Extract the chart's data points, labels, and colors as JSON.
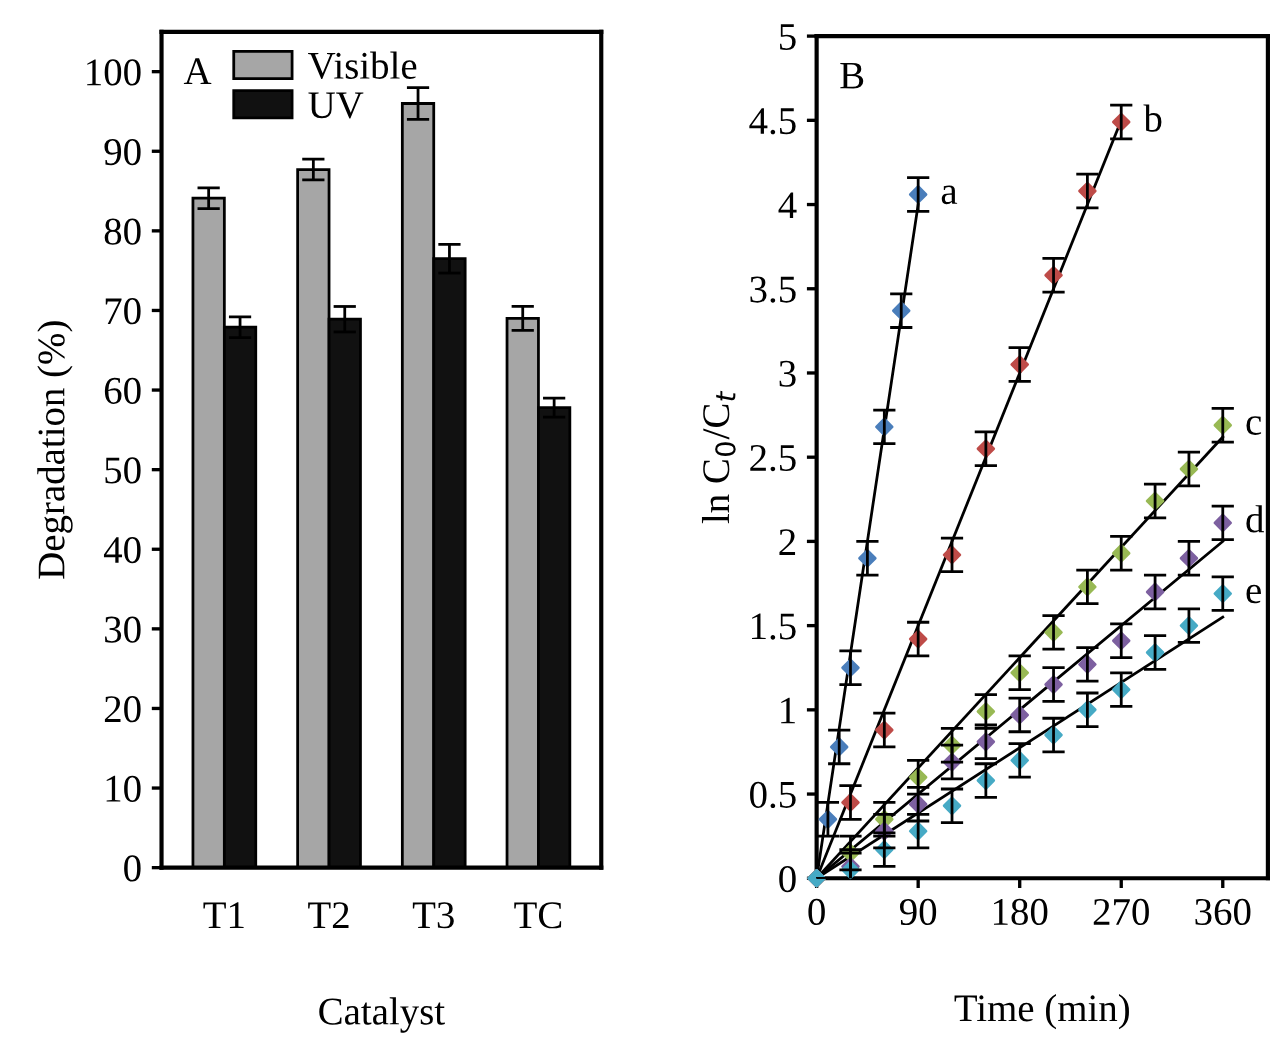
{
  "chart_data": [
    {
      "type": "bar",
      "xlabel": "Catalyst",
      "ylabel": "Degradation (%)",
      "categories": [
        "T1",
        "T2",
        "T3",
        "TC"
      ],
      "ylim": [
        0,
        105
      ],
      "yticks": [
        0,
        10,
        20,
        30,
        40,
        50,
        60,
        70,
        80,
        90,
        100
      ],
      "legend": "top left",
      "grid": false,
      "annotations": [
        "A"
      ],
      "series": [
        {
          "name": "Visible",
          "color": "#a6a6a6",
          "values": [
            84.1,
            87.7,
            96.0,
            69.0
          ],
          "errors": [
            1.3,
            1.3,
            2.0,
            1.5
          ]
        },
        {
          "name": "UV",
          "color": "#111111",
          "values": [
            67.9,
            68.9,
            76.5,
            57.8
          ],
          "errors": [
            1.3,
            1.6,
            1.8,
            1.2
          ]
        }
      ]
    },
    {
      "type": "scatter",
      "xlabel": "Time (min)",
      "ylabel": "ln C$_{0}$/C$_{t}$",
      "xlim": [
        0,
        400
      ],
      "xticks": [
        0,
        90,
        180,
        270,
        360
      ],
      "ylim": [
        0,
        5
      ],
      "yticks": [
        0,
        0.5,
        1,
        1.5,
        2,
        2.5,
        3,
        3.5,
        4,
        4.5,
        5
      ],
      "grid": false,
      "annotations": [
        "B"
      ],
      "series": [
        {
          "name": "a",
          "marker": "diamond",
          "color": "#4a7ebb",
          "x": [
            0,
            10,
            20,
            30,
            45,
            60,
            75,
            90
          ],
          "values": [
            0,
            0.35,
            0.78,
            1.25,
            1.9,
            2.68,
            3.37,
            4.06
          ],
          "errors": [
            null,
            0.1,
            0.1,
            0.1,
            0.1,
            0.1,
            0.1,
            0.1
          ]
        },
        {
          "name": "b",
          "marker": "diamond",
          "color": "#be4b48",
          "x": [
            0,
            30,
            60,
            90,
            120,
            150,
            180,
            210,
            240,
            270
          ],
          "values": [
            0,
            0.45,
            0.88,
            1.42,
            1.92,
            2.55,
            3.05,
            3.58,
            4.08,
            4.49
          ],
          "errors": [
            null,
            0.1,
            0.1,
            0.1,
            0.1,
            0.1,
            0.1,
            0.1,
            0.1,
            0.1
          ]
        },
        {
          "name": "c",
          "marker": "diamond",
          "color": "#98b954",
          "x": [
            0,
            30,
            60,
            90,
            120,
            150,
            180,
            210,
            240,
            270,
            300,
            330,
            360
          ],
          "values": [
            0,
            0.15,
            0.35,
            0.6,
            0.79,
            0.99,
            1.22,
            1.46,
            1.73,
            1.93,
            2.24,
            2.43,
            2.69
          ],
          "errors": [
            null,
            0.1,
            0.1,
            0.1,
            0.1,
            0.1,
            0.1,
            0.1,
            0.1,
            0.1,
            0.1,
            0.1,
            0.1
          ]
        },
        {
          "name": "d",
          "marker": "diamond",
          "color": "#7d60a0",
          "x": [
            0,
            30,
            60,
            90,
            120,
            150,
            180,
            210,
            240,
            270,
            300,
            330,
            360
          ],
          "values": [
            0,
            0.07,
            0.28,
            0.44,
            0.69,
            0.81,
            0.97,
            1.15,
            1.27,
            1.41,
            1.7,
            1.9,
            2.11
          ],
          "errors": [
            null,
            0.1,
            0.1,
            0.1,
            0.1,
            0.1,
            0.1,
            0.1,
            0.1,
            0.1,
            0.1,
            0.1,
            0.1
          ]
        },
        {
          "name": "e",
          "marker": "diamond",
          "color": "#46aac5",
          "x": [
            0,
            30,
            60,
            90,
            120,
            150,
            180,
            210,
            240,
            270,
            300,
            330,
            360
          ],
          "values": [
            0,
            0.05,
            0.17,
            0.28,
            0.43,
            0.58,
            0.7,
            0.85,
            1.0,
            1.12,
            1.34,
            1.5,
            1.69
          ],
          "errors": [
            null,
            0.1,
            0.1,
            0.1,
            0.1,
            0.1,
            0.1,
            0.1,
            0.1,
            0.1,
            0.1,
            0.1,
            0.1
          ]
        },
        {
          "type": "line",
          "marker": "none",
          "color": "#000000",
          "x": [
            0,
            90
          ],
          "values": [
            0,
            4.0
          ]
        },
        {
          "type": "line",
          "marker": "none",
          "color": "#000000",
          "x": [
            0,
            270
          ],
          "values": [
            0,
            4.5
          ]
        },
        {
          "type": "line",
          "marker": "none",
          "color": "#000000",
          "x": [
            0,
            360
          ],
          "values": [
            0,
            2.62
          ]
        },
        {
          "type": "line",
          "marker": "none",
          "color": "#000000",
          "x": [
            0,
            360
          ],
          "values": [
            0,
            2.0
          ]
        },
        {
          "type": "line",
          "marker": "none",
          "color": "#000000",
          "x": [
            0,
            360
          ],
          "values": [
            0,
            1.55
          ]
        }
      ]
    }
  ]
}
